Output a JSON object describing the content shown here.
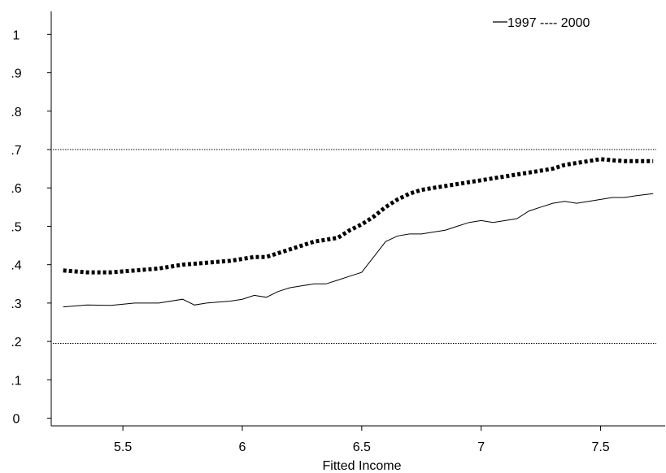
{
  "chart_data": {
    "type": "line",
    "title": "",
    "xlabel": "Fitted Income",
    "ylabel": "",
    "xlim": [
      5.2,
      7.75
    ],
    "ylim": [
      -0.02,
      1.06
    ],
    "x_ticks": [
      5.5,
      6,
      6.5,
      7,
      7.5
    ],
    "x_tick_labels": [
      "5.5",
      "6",
      "6.5",
      "7",
      "7.5"
    ],
    "y_ticks": [
      0,
      0.1,
      0.2,
      0.3,
      0.4,
      0.5,
      0.6,
      0.7,
      0.8,
      0.9,
      1
    ],
    "y_tick_labels": [
      "0",
      ".1",
      ".2",
      ".3",
      ".4",
      ".5",
      ".6",
      ".7",
      ".8",
      ".9",
      "1"
    ],
    "legend": {
      "text": "1997 ---- 2000",
      "position": "top-right"
    },
    "grid": false,
    "series": [
      {
        "name": "1997",
        "style": "solid",
        "points": [
          [
            5.25,
            0.29
          ],
          [
            5.35,
            0.295
          ],
          [
            5.45,
            0.294
          ],
          [
            5.55,
            0.3
          ],
          [
            5.65,
            0.3
          ],
          [
            5.75,
            0.31
          ],
          [
            5.8,
            0.295
          ],
          [
            5.85,
            0.3
          ],
          [
            5.95,
            0.305
          ],
          [
            6.0,
            0.31
          ],
          [
            6.05,
            0.32
          ],
          [
            6.1,
            0.315
          ],
          [
            6.15,
            0.33
          ],
          [
            6.2,
            0.34
          ],
          [
            6.25,
            0.345
          ],
          [
            6.3,
            0.35
          ],
          [
            6.35,
            0.35
          ],
          [
            6.4,
            0.36
          ],
          [
            6.45,
            0.37
          ],
          [
            6.5,
            0.38
          ],
          [
            6.55,
            0.42
          ],
          [
            6.6,
            0.46
          ],
          [
            6.65,
            0.475
          ],
          [
            6.7,
            0.48
          ],
          [
            6.75,
            0.48
          ],
          [
            6.8,
            0.485
          ],
          [
            6.85,
            0.49
          ],
          [
            6.9,
            0.5
          ],
          [
            6.95,
            0.51
          ],
          [
            7.0,
            0.515
          ],
          [
            7.05,
            0.51
          ],
          [
            7.1,
            0.515
          ],
          [
            7.15,
            0.52
          ],
          [
            7.2,
            0.54
          ],
          [
            7.25,
            0.55
          ],
          [
            7.3,
            0.56
          ],
          [
            7.35,
            0.565
          ],
          [
            7.4,
            0.56
          ],
          [
            7.45,
            0.565
          ],
          [
            7.5,
            0.57
          ],
          [
            7.55,
            0.575
          ],
          [
            7.6,
            0.575
          ],
          [
            7.65,
            0.58
          ],
          [
            7.72,
            0.585
          ]
        ]
      },
      {
        "name": "2000",
        "style": "dotted",
        "points": [
          [
            5.25,
            0.385
          ],
          [
            5.35,
            0.38
          ],
          [
            5.45,
            0.38
          ],
          [
            5.55,
            0.385
          ],
          [
            5.65,
            0.39
          ],
          [
            5.75,
            0.4
          ],
          [
            5.85,
            0.405
          ],
          [
            5.95,
            0.41
          ],
          [
            6.0,
            0.415
          ],
          [
            6.05,
            0.42
          ],
          [
            6.1,
            0.42
          ],
          [
            6.15,
            0.43
          ],
          [
            6.2,
            0.44
          ],
          [
            6.25,
            0.45
          ],
          [
            6.3,
            0.46
          ],
          [
            6.35,
            0.465
          ],
          [
            6.4,
            0.47
          ],
          [
            6.45,
            0.49
          ],
          [
            6.5,
            0.505
          ],
          [
            6.55,
            0.525
          ],
          [
            6.6,
            0.55
          ],
          [
            6.65,
            0.57
          ],
          [
            6.7,
            0.585
          ],
          [
            6.75,
            0.595
          ],
          [
            6.8,
            0.6
          ],
          [
            6.85,
            0.605
          ],
          [
            6.9,
            0.61
          ],
          [
            6.95,
            0.615
          ],
          [
            7.0,
            0.62
          ],
          [
            7.05,
            0.625
          ],
          [
            7.1,
            0.63
          ],
          [
            7.15,
            0.635
          ],
          [
            7.2,
            0.64
          ],
          [
            7.25,
            0.645
          ],
          [
            7.3,
            0.65
          ],
          [
            7.35,
            0.66
          ],
          [
            7.4,
            0.665
          ],
          [
            7.45,
            0.67
          ],
          [
            7.5,
            0.675
          ],
          [
            7.55,
            0.672
          ],
          [
            7.6,
            0.67
          ],
          [
            7.65,
            0.67
          ],
          [
            7.72,
            0.67
          ]
        ]
      }
    ],
    "reference_lines": [
      {
        "y": 0.7,
        "style": "dotted"
      },
      {
        "y": 0.195,
        "style": "dotted"
      }
    ]
  }
}
